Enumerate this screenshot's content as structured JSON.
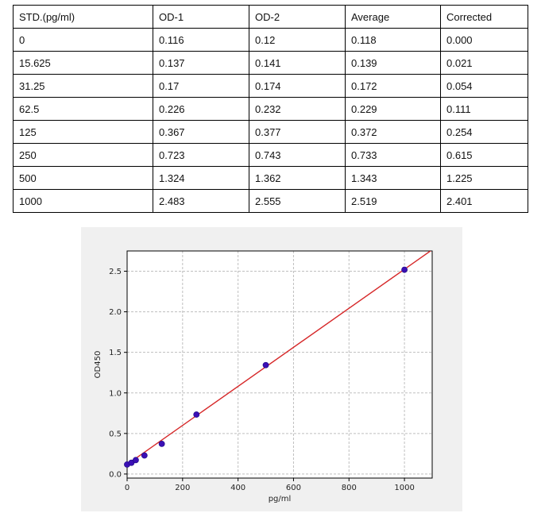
{
  "table": {
    "headers": [
      "STD.(pg/ml)",
      "OD-1",
      "OD-2",
      "Average",
      "Corrected"
    ],
    "rows": [
      [
        "0",
        "0.116",
        "0.12",
        "0.118",
        "0.000"
      ],
      [
        "15.625",
        "0.137",
        "0.141",
        "0.139",
        "0.021"
      ],
      [
        "31.25",
        "0.17",
        "0.174",
        "0.172",
        "0.054"
      ],
      [
        "62.5",
        "0.226",
        "0.232",
        "0.229",
        "0.111"
      ],
      [
        "125",
        "0.367",
        "0.377",
        "0.372",
        "0.254"
      ],
      [
        "250",
        "0.723",
        "0.743",
        "0.733",
        "0.615"
      ],
      [
        "500",
        "1.324",
        "1.362",
        "1.343",
        "1.225"
      ],
      [
        "1000",
        "2.483",
        "2.555",
        "2.519",
        "2.401"
      ]
    ]
  },
  "chart_data": {
    "type": "scatter",
    "title": "",
    "xlabel": "pg/ml",
    "ylabel": "OD450",
    "xlim": [
      0,
      1100
    ],
    "ylim": [
      -0.05,
      2.75
    ],
    "xticks": [
      0,
      200,
      400,
      600,
      800,
      1000
    ],
    "yticks": [
      "0.0",
      "0.5",
      "1.0",
      "1.5",
      "2.0",
      "2.5"
    ],
    "grid": true,
    "points": {
      "x": [
        0,
        15.625,
        31.25,
        62.5,
        125,
        250,
        500,
        1000
      ],
      "y": [
        0.118,
        0.139,
        0.172,
        0.229,
        0.372,
        0.733,
        1.343,
        2.519
      ]
    },
    "fit_line": {
      "x": [
        0,
        1100
      ],
      "y": [
        0.118,
        2.765
      ]
    },
    "colors": {
      "points": "#3b0fb5",
      "line": "#d62728",
      "grid": "#bfbfbf"
    }
  }
}
